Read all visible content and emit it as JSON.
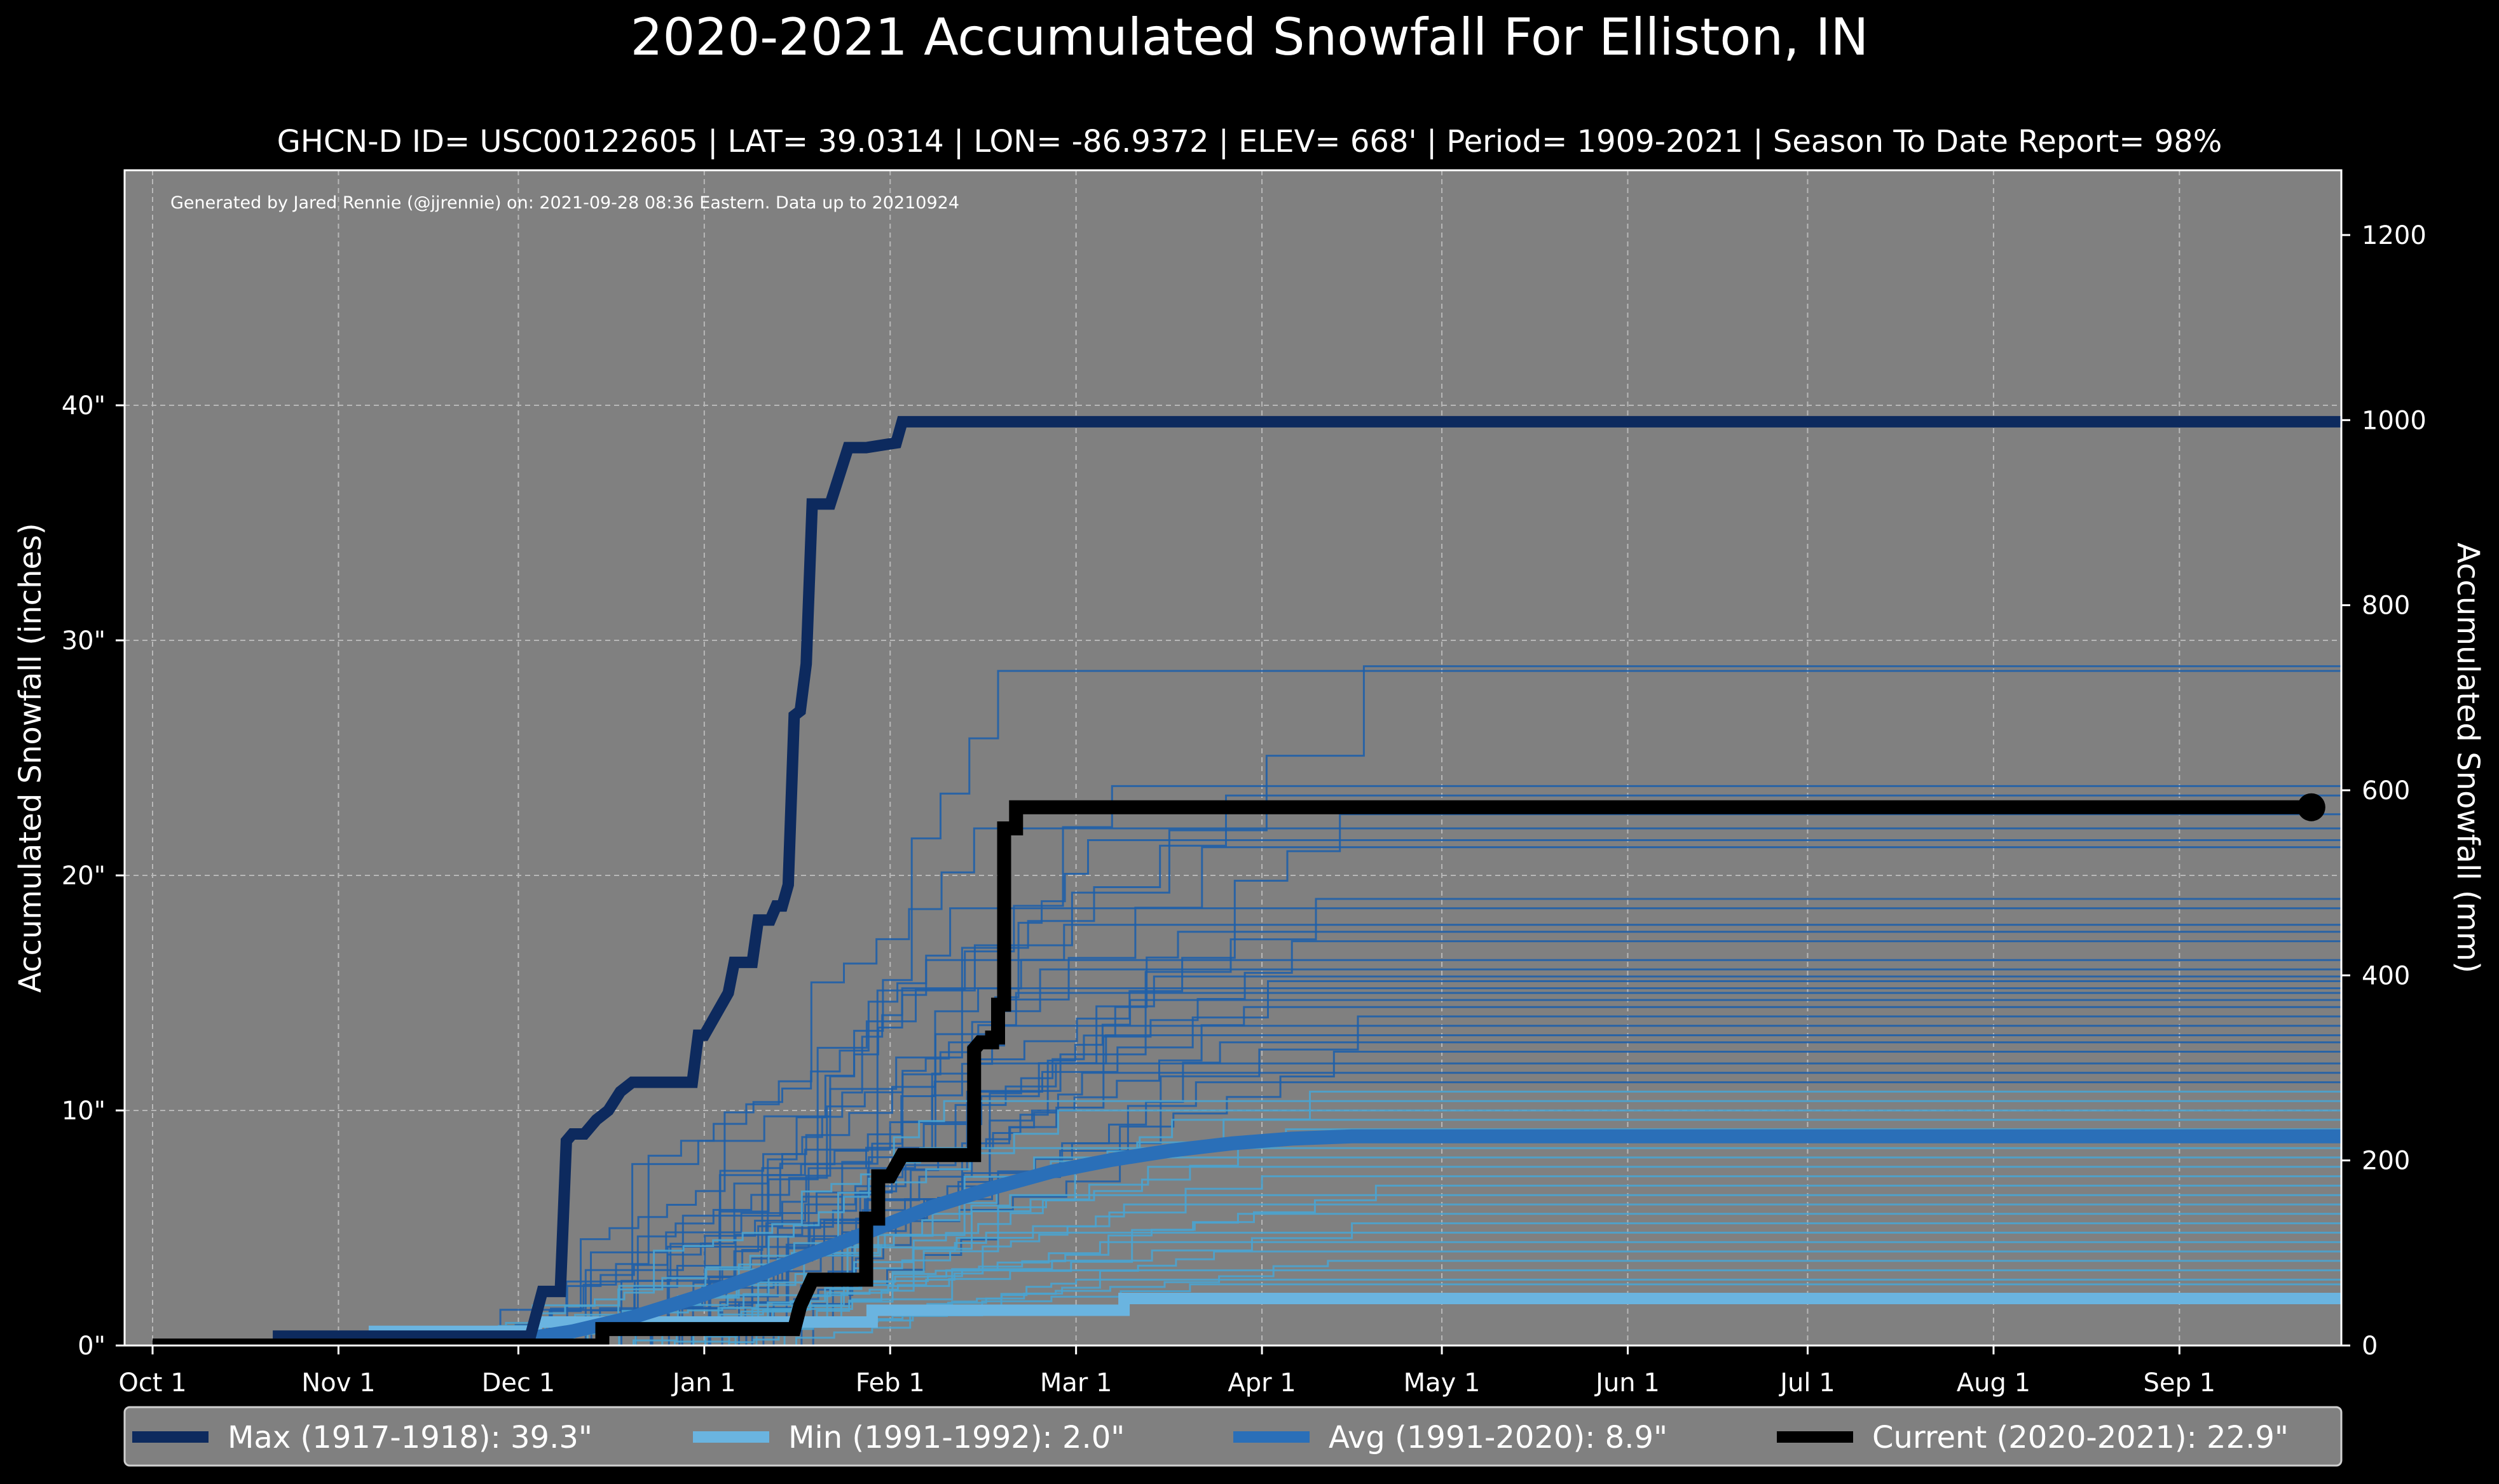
{
  "chart_data": {
    "type": "line",
    "title": "2020-2021 Accumulated Snowfall For Elliston, IN",
    "subtitle": "GHCN-D ID= USC00122605 | LAT= 39.0314 | LON= -86.9372 | ELEV= 668' | Period= 1909-2021 | Season To Date Report= 98%",
    "credit": "Generated by Jared Rennie (@jjrennie) on: 2021-09-28 08:36 Eastern. Data up to 20210924",
    "ylabel": "Accumulated Snowfall (inches)",
    "ylabel_right": "Accumulated Snowfall (mm)",
    "xlabel": "",
    "xlim": [
      0,
      365
    ],
    "ylim": [
      0,
      50
    ],
    "ylim_right_mm": [
      0,
      1270
    ],
    "x_ticks": [
      {
        "label": "Oct 1",
        "day": 0
      },
      {
        "label": "Nov 1",
        "day": 31
      },
      {
        "label": "Dec 1",
        "day": 61
      },
      {
        "label": "Jan 1",
        "day": 92
      },
      {
        "label": "Feb 1",
        "day": 123
      },
      {
        "label": "Mar 1",
        "day": 154
      },
      {
        "label": "Apr 1",
        "day": 185
      },
      {
        "label": "May 1",
        "day": 215
      },
      {
        "label": "Jun 1",
        "day": 246
      },
      {
        "label": "Jul 1",
        "day": 276
      },
      {
        "label": "Aug 1",
        "day": 307
      },
      {
        "label": "Sep 1",
        "day": 338
      }
    ],
    "y_ticks": [
      {
        "label": "0\"",
        "value": 0
      },
      {
        "label": "10\"",
        "value": 10
      },
      {
        "label": "20\"",
        "value": 20
      },
      {
        "label": "30\"",
        "value": 30
      },
      {
        "label": "40\"",
        "value": 40
      }
    ],
    "y_ticks_right": [
      {
        "label": "0",
        "value": 0
      },
      {
        "label": "200",
        "value": 200
      },
      {
        "label": "400",
        "value": 400
      },
      {
        "label": "600",
        "value": 600
      },
      {
        "label": "800",
        "value": 800
      },
      {
        "label": "1000",
        "value": 1000
      },
      {
        "label": "1200",
        "value": 1200
      }
    ],
    "legend_position": "bottom",
    "grid": true,
    "colors": {
      "background": "#000000",
      "plot": "#808080",
      "max": "#0d2a5e",
      "min": "#6ab4e0",
      "avg": "#2a6fb8",
      "current": "#000000",
      "history": "#1f5fa8",
      "history_light": "#4aa3cf"
    },
    "series": [
      {
        "name": "Max (1917-1918)",
        "legend_value": "39.3\"",
        "kind": "max",
        "x": [
          0,
          21,
          21,
          63,
          65,
          68,
          69,
          70,
          72,
          74,
          76,
          78,
          80,
          82,
          90,
          91,
          92,
          96,
          97,
          98,
          100,
          101,
          103,
          104,
          105,
          106,
          107,
          108,
          109,
          110,
          111,
          112,
          113,
          116,
          118,
          119,
          124,
          125,
          126,
          127,
          365
        ],
        "y": [
          0,
          0,
          0.4,
          0.4,
          2.3,
          2.3,
          8.7,
          9.0,
          9.0,
          9.6,
          10.0,
          10.8,
          11.2,
          11.2,
          11.2,
          13.2,
          13.2,
          15.0,
          16.3,
          16.3,
          16.3,
          18.1,
          18.1,
          18.7,
          18.7,
          19.6,
          26.8,
          27.0,
          29.0,
          35.8,
          35.8,
          35.8,
          35.8,
          38.2,
          38.2,
          38.2,
          38.4,
          39.3,
          39.3,
          39.3,
          39.3
        ]
      },
      {
        "name": "Min (1991-1992)",
        "legend_value": "2.0\"",
        "kind": "min",
        "x": [
          0,
          37,
          37,
          64,
          64,
          120,
          120,
          162,
          162,
          365
        ],
        "y": [
          0,
          0,
          0.6,
          0.6,
          1.0,
          1.0,
          1.5,
          1.5,
          2.0,
          2.0
        ]
      },
      {
        "name": "Avg (1991-2020)",
        "legend_value": "8.9\"",
        "kind": "avg",
        "x": [
          0,
          45,
          60,
          70,
          80,
          90,
          100,
          110,
          120,
          130,
          140,
          150,
          160,
          170,
          180,
          190,
          200,
          365
        ],
        "y": [
          0,
          0,
          0.2,
          0.6,
          1.2,
          2.0,
          2.9,
          3.9,
          4.9,
          5.9,
          6.7,
          7.4,
          7.9,
          8.3,
          8.6,
          8.8,
          8.9,
          8.9
        ]
      },
      {
        "name": "Current (2020-2021)",
        "legend_value": "22.9\"",
        "kind": "current",
        "x": [
          0,
          75,
          75,
          107,
          108,
          110,
          110,
          117,
          117,
          119,
          119,
          121,
          121,
          123,
          123,
          125,
          125,
          137,
          137,
          138,
          138,
          140,
          140,
          141,
          141,
          142,
          142,
          144,
          144,
          147,
          147,
          360
        ],
        "y": [
          0,
          0,
          0.7,
          0.7,
          1.7,
          2.8,
          2.8,
          2.8,
          2.8,
          2.8,
          5.4,
          5.4,
          7.2,
          7.2,
          7.2,
          8.1,
          8.1,
          8.1,
          12.6,
          12.9,
          12.9,
          12.9,
          13.1,
          13.1,
          14.5,
          14.5,
          22.0,
          22.0,
          22.9,
          22.9,
          22.9,
          22.9
        ]
      }
    ],
    "history_series_finals": [
      28.9,
      28.7,
      23.8,
      23.4,
      22.6,
      22.0,
      21.5,
      21.2,
      19.0,
      18.6,
      17.9,
      17.6,
      17.2,
      16.4,
      16.0,
      15.7,
      15.5,
      15.2,
      15.0,
      14.7,
      14.4,
      14.0,
      13.6,
      13.2,
      12.9,
      12.5,
      12.0,
      11.6,
      11.2,
      10.8,
      10.4,
      10.0,
      9.6,
      9.2,
      8.4,
      8.0,
      7.6,
      7.2,
      6.8,
      6.4,
      6.0,
      5.6,
      5.2,
      4.8,
      4.4,
      4.0,
      3.6,
      3.2,
      2.8,
      2.6
    ]
  }
}
